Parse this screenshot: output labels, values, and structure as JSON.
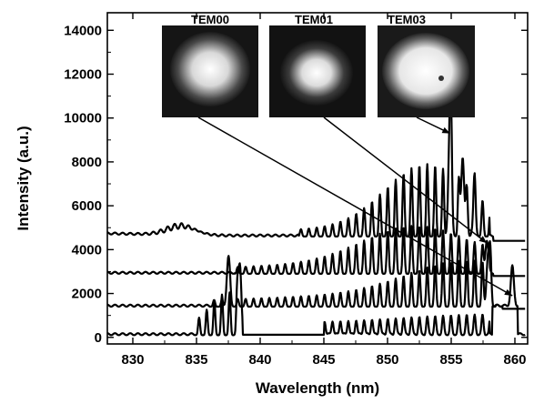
{
  "chart_data": {
    "type": "line",
    "xlabel": "Wavelength (nm)",
    "ylabel": "Intensity (a.u.)",
    "xlim": [
      828,
      861
    ],
    "ylim": [
      -300,
      14800
    ],
    "x_ticks": [
      830,
      835,
      840,
      845,
      850,
      855,
      860
    ],
    "y_ticks": [
      0,
      2000,
      4000,
      6000,
      8000,
      10000,
      12000,
      14000
    ],
    "grid": false,
    "series": [
      {
        "baseline": 4600,
        "comb_start": 843,
        "comb_end": 858,
        "period": 0.62,
        "envelope_center": 853,
        "envelope_width": 3.2,
        "envelope_peak": 2800,
        "bump_center": 833.8,
        "bump_height": 550,
        "strong_peaks": [
          {
            "x": 854.9,
            "y": 9500
          },
          {
            "x": 855.9,
            "y": 8200
          },
          {
            "x": 856.8,
            "y": 5600
          }
        ],
        "edge_x": 858.3
      },
      {
        "baseline": 2900,
        "comb_start": 838,
        "comb_end": 858,
        "period": 0.62,
        "envelope_center": 852,
        "envelope_width": 4.0,
        "envelope_peak": 1600,
        "strong_peaks": [
          {
            "x": 857.8,
            "y": 4400
          }
        ],
        "edge_x": 858.3
      },
      {
        "baseline": 1400,
        "comb_start": 836,
        "comb_end": 858.5,
        "period": 0.62,
        "envelope_center": 856,
        "envelope_width": 4.5,
        "envelope_peak": 1400,
        "strong_peaks": [
          {
            "x": 837.5,
            "y": 3600
          },
          {
            "x": 857.9,
            "y": 3800
          }
        ],
        "edge_x": 859.0
      },
      {
        "baseline": 100,
        "comb_start": 835,
        "comb_end": 839,
        "period": 0.6,
        "envelope_center": 837.5,
        "envelope_width": 1.5,
        "envelope_peak": 1600,
        "strong_peaks": [
          {
            "x": 838.4,
            "y": 3350
          }
        ],
        "second_comb": {
          "start": 845,
          "end": 858,
          "period": 0.62,
          "height": 1100
        },
        "step": {
          "start": 858.2,
          "end": 860.2,
          "height": 1300
        },
        "strong_peaks_2": [
          {
            "x": 859.8,
            "y": 1900
          }
        ],
        "edge_x": 838.6
      }
    ],
    "insets": [
      {
        "label": "TEM00",
        "target": {
          "x": 859.8,
          "y": 1900
        }
      },
      {
        "label": "TEM01",
        "target": {
          "x": 857.8,
          "y": 4300
        }
      },
      {
        "label": "TEM03",
        "target": {
          "x": 854.9,
          "y": 9300
        }
      }
    ]
  },
  "colors": {
    "line": "#000000",
    "inset_dark": "#101010",
    "inset_glow": "#ffffff"
  }
}
